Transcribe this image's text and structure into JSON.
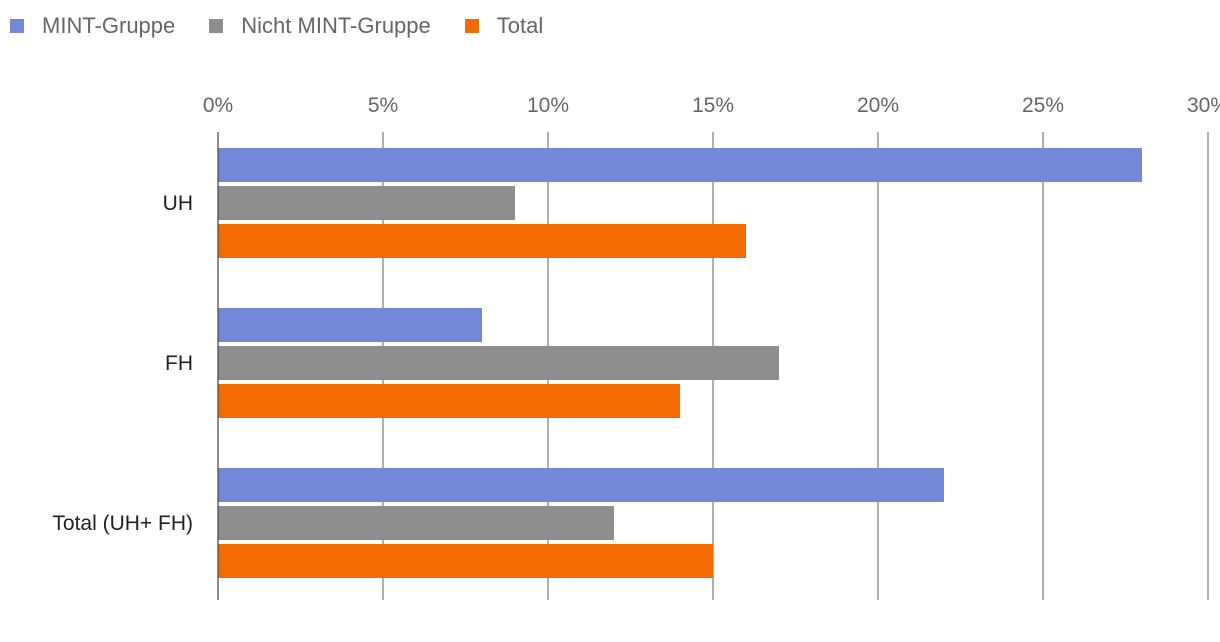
{
  "chart_data": {
    "type": "bar",
    "orientation": "horizontal",
    "title": "",
    "xlabel": "",
    "ylabel": "",
    "categories": [
      "UH",
      "FH",
      "Total (UH+ FH)"
    ],
    "series": [
      {
        "name": "MINT-Gruppe",
        "color": "#7289D8",
        "values": [
          28,
          8,
          22
        ]
      },
      {
        "name": "Nicht MINT-Gruppe",
        "color": "#8E8E8E",
        "values": [
          9,
          17,
          12
        ]
      },
      {
        "name": "Total",
        "color": "#F36A00",
        "values": [
          16,
          14,
          15
        ]
      }
    ],
    "xlim": [
      0,
      30
    ],
    "xticks": [
      0,
      5,
      10,
      15,
      20,
      25,
      30
    ],
    "xtick_labels": [
      "0%",
      "5%",
      "10%",
      "15%",
      "20%",
      "25%",
      "30%"
    ],
    "grid": true,
    "legend_position": "top-left"
  }
}
